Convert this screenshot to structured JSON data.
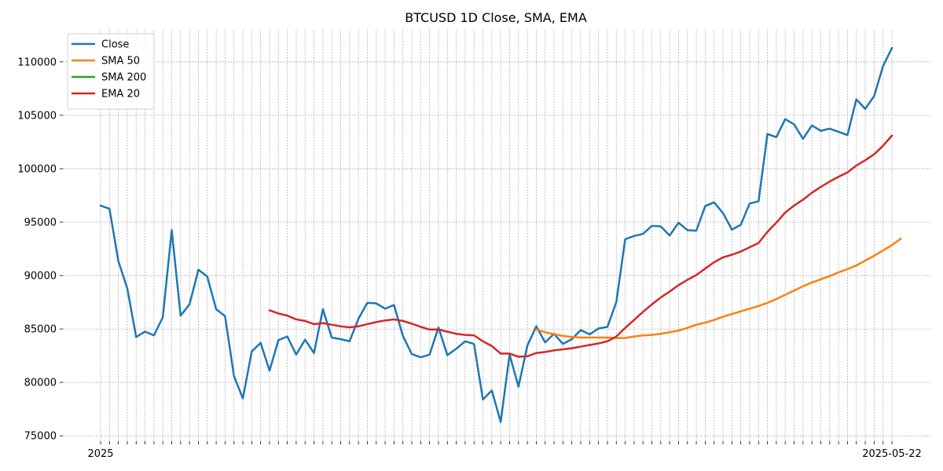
{
  "chart_data": {
    "type": "line",
    "title": "BTCUSD 1D Close, SMA, EMA",
    "xlabel": "",
    "ylabel": "",
    "ylim": [
      74500,
      113000
    ],
    "yticks": [
      75000,
      80000,
      85000,
      90000,
      95000,
      100000,
      105000,
      110000
    ],
    "ytick_labels": [
      "75000",
      "80000",
      "85000",
      "90000",
      "95000",
      "100000",
      "105000",
      "110000"
    ],
    "x_count": 90,
    "xtick_first_label": "2025",
    "xtick_last_label": "2025-05-22",
    "grid": true,
    "legend_position": "top-left",
    "series": [
      {
        "name": "Close",
        "color": "#1f77b4",
        "start_index": 0,
        "values": [
          96550,
          96250,
          91350,
          88800,
          84250,
          84750,
          84400,
          86100,
          94250,
          86250,
          87300,
          90550,
          89900,
          86850,
          86200,
          80600,
          78500,
          82900,
          83700,
          81100,
          83950,
          84300,
          82600,
          84000,
          82750,
          86850,
          84200,
          84050,
          83850,
          85950,
          87450,
          87400,
          86900,
          87250,
          84350,
          82650,
          82350,
          82600,
          85150,
          82550,
          83150,
          83850,
          83600,
          78400,
          79250,
          76300,
          82600,
          79600,
          83450,
          85250,
          83750,
          84550,
          83600,
          84050,
          84900,
          84500,
          85050,
          85200,
          87500,
          93400,
          93700,
          93900,
          94650,
          94600,
          93750,
          94950,
          94250,
          94200,
          96500,
          96850,
          95850,
          94300,
          94750,
          96750,
          96950,
          103250,
          102950,
          104650,
          104150,
          102800,
          104050,
          103550,
          103750,
          103450,
          103150,
          106500,
          105600,
          106800,
          109600,
          111300
        ]
      },
      {
        "name": "SMA 50",
        "color": "#ff7f0e",
        "start_index": 49,
        "values": [
          84950,
          84700,
          84500,
          84350,
          84250,
          84200,
          84200,
          84200,
          84200,
          84150,
          84150,
          84300,
          84400,
          84450,
          84550,
          84700,
          84850,
          85100,
          85400,
          85600,
          85850,
          86150,
          86400,
          86650,
          86900,
          87150,
          87450,
          87800,
          88200,
          88600,
          89000,
          89350,
          89650,
          89950,
          90300,
          90600,
          90950,
          91400,
          91850,
          92350,
          92850,
          93450
        ]
      },
      {
        "name": "SMA 200",
        "color": "#2ca02c",
        "start_index": 0,
        "values": []
      },
      {
        "name": "EMA 20",
        "color": "#d62728",
        "start_index": 19,
        "values": [
          86750,
          86450,
          86250,
          85900,
          85750,
          85450,
          85550,
          85400,
          85250,
          85150,
          85250,
          85450,
          85650,
          85800,
          85900,
          85750,
          85500,
          85200,
          84950,
          84950,
          84750,
          84550,
          84450,
          84400,
          83850,
          83400,
          82700,
          82700,
          82400,
          82450,
          82750,
          82850,
          83000,
          83100,
          83200,
          83350,
          83500,
          83650,
          83850,
          84300,
          85100,
          85850,
          86600,
          87300,
          87950,
          88500,
          89100,
          89600,
          90050,
          90650,
          91250,
          91700,
          91950,
          92250,
          92650,
          93050,
          94100,
          94950,
          95900,
          96550,
          97100,
          97750,
          98300,
          98800,
          99250,
          99650,
          100300,
          100800,
          101350,
          102150,
          103100
        ]
      }
    ]
  }
}
